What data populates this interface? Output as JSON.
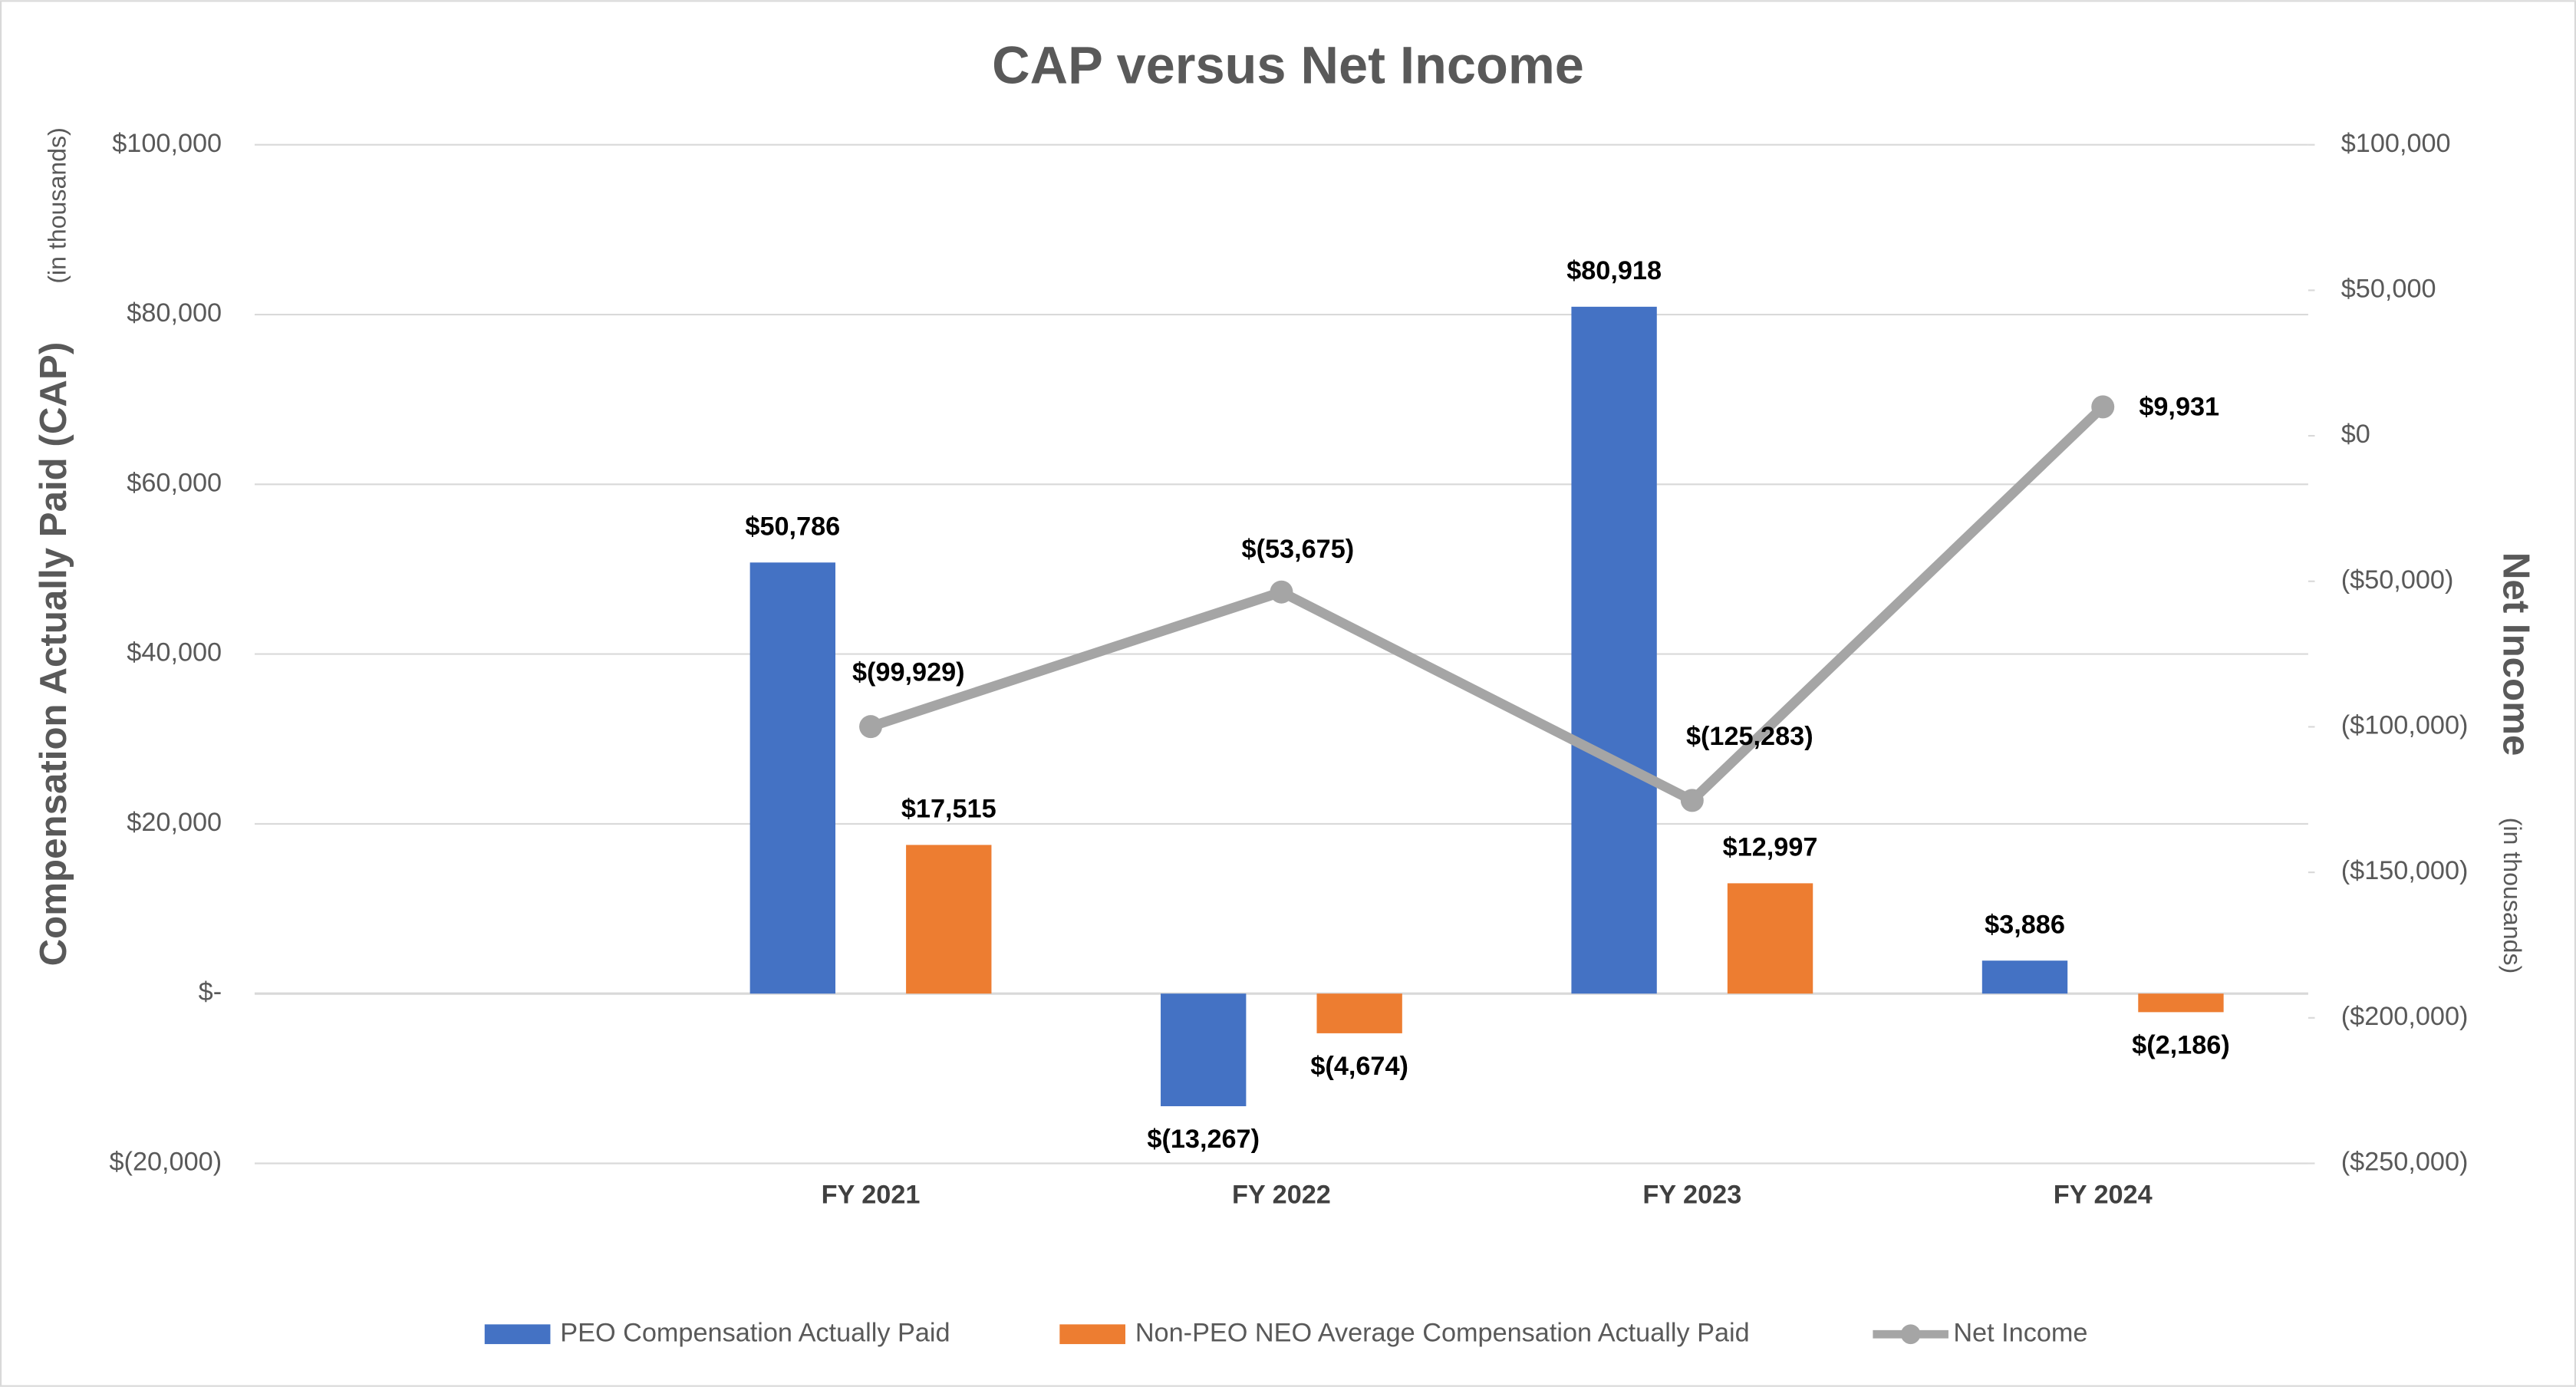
{
  "chart_data": {
    "type": "bar",
    "title": "CAP versus Net Income",
    "y_label": "Compensation Actually Paid (CAP)",
    "y_label_note": "(in thousands)",
    "y2_label": "Net Income",
    "y2_label_note": "(in thousands)",
    "categories": [
      null,
      "FY 2021",
      "FY 2022",
      "FY 2023",
      "FY 2024"
    ],
    "series": [
      {
        "name": "PEO Compensation Actually Paid",
        "type": "bar",
        "color": "#4472c4",
        "values": [
          null,
          50786,
          -13267,
          80918,
          3886
        ],
        "value_labels": [
          null,
          "$50,786",
          "$(13,267)",
          "$80,918",
          "$3,886"
        ]
      },
      {
        "name": "Non-PEO NEO Average Compensation Actually Paid",
        "type": "bar",
        "color": "#ed7d31",
        "values": [
          null,
          17515,
          -4674,
          12997,
          -2186
        ],
        "value_labels": [
          null,
          "$17,515",
          "$(4,674)",
          "$12,997",
          "$(2,186)"
        ]
      },
      {
        "name": "Net Income",
        "type": "line",
        "axis": "y2",
        "color": "#a5a5a5",
        "values": [
          null,
          -99929,
          -53675,
          -125283,
          9931
        ],
        "value_labels": [
          null,
          "$(99,929)",
          "$(53,675)",
          "$(125,283)",
          "$9,931"
        ]
      }
    ],
    "ylim": [
      -20000,
      100000
    ],
    "yticks": [
      {
        "value": -20000,
        "label": "$(20,000)"
      },
      {
        "value": 0,
        "label": "$-"
      },
      {
        "value": 20000,
        "label": "$20,000"
      },
      {
        "value": 40000,
        "label": "$40,000"
      },
      {
        "value": 60000,
        "label": "$60,000"
      },
      {
        "value": 80000,
        "label": "$80,000"
      },
      {
        "value": 100000,
        "label": "$100,000"
      }
    ],
    "y2lim": [
      -250000,
      100000
    ],
    "y2ticks": [
      {
        "value": -250000,
        "label": "($250,000)"
      },
      {
        "value": -200000,
        "label": "($200,000)"
      },
      {
        "value": -150000,
        "label": "($150,000)"
      },
      {
        "value": -100000,
        "label": "($100,000)"
      },
      {
        "value": -50000,
        "label": "($50,000)"
      },
      {
        "value": 0,
        "label": "$0"
      },
      {
        "value": 50000,
        "label": "$50,000"
      },
      {
        "value": 100000,
        "label": "$100,000"
      }
    ],
    "grid": true,
    "legend": "bottom"
  }
}
